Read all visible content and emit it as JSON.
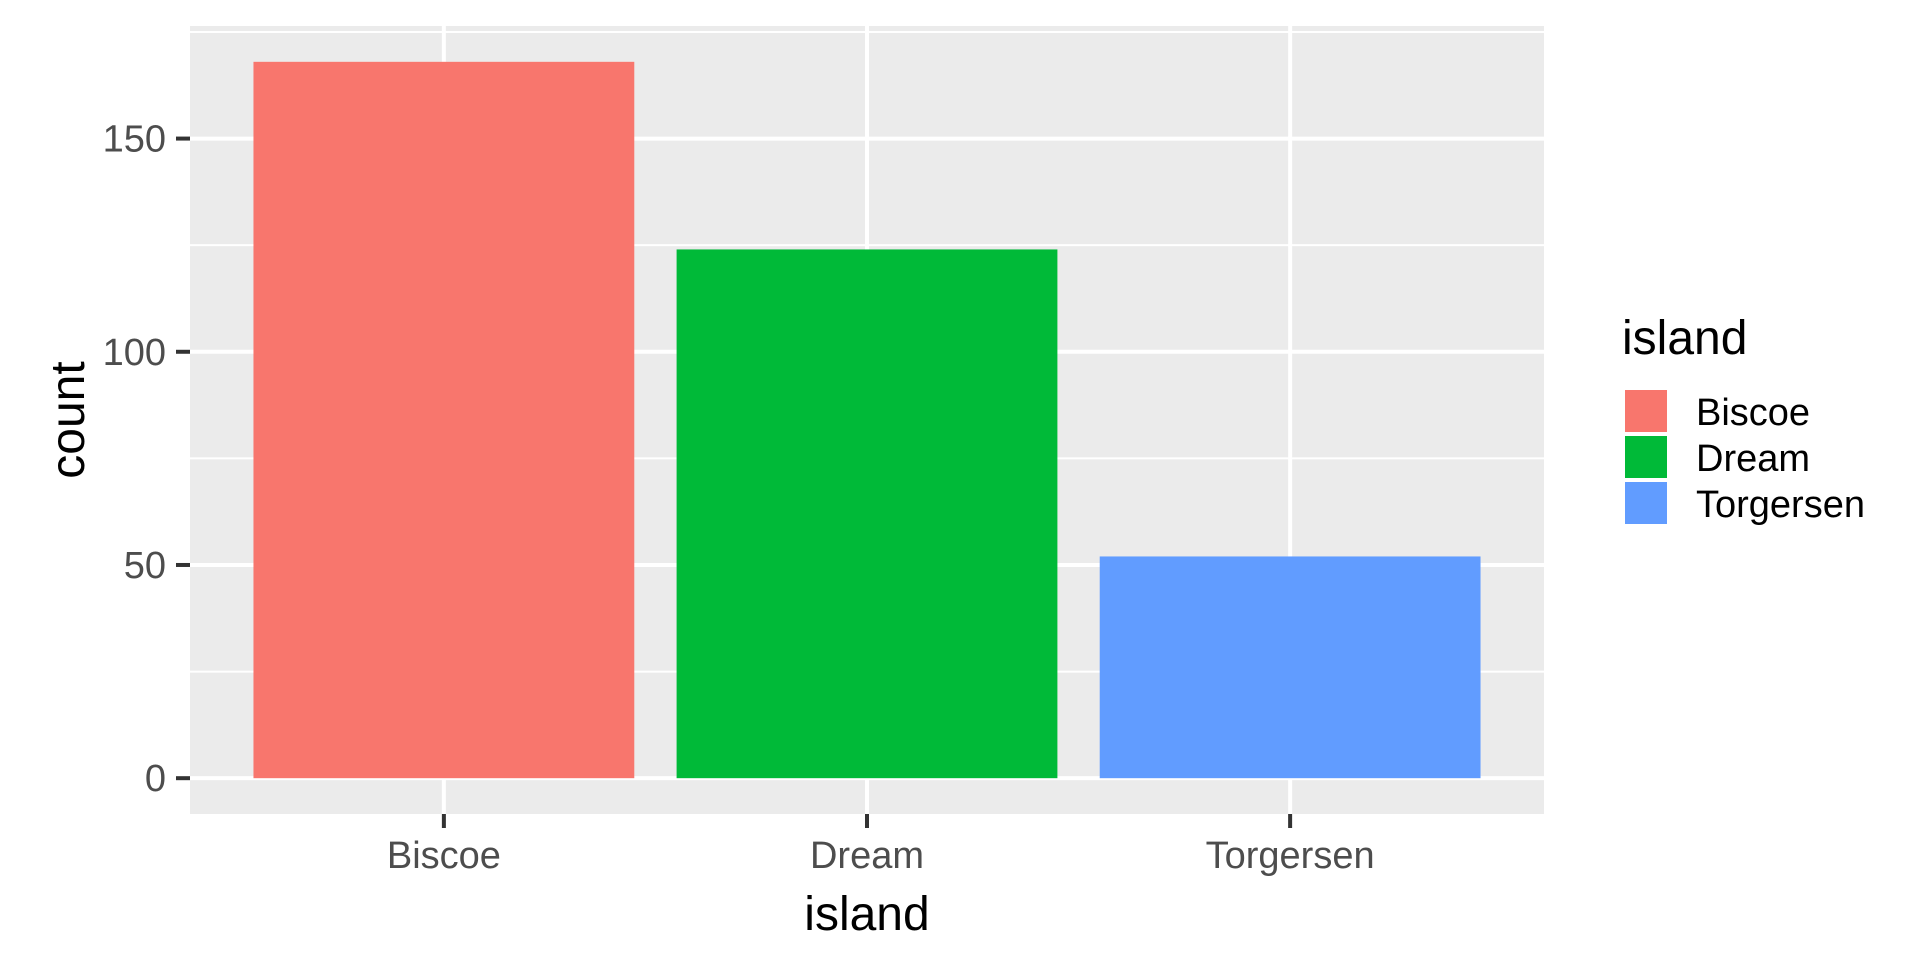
{
  "chart_data": {
    "type": "bar",
    "categories": [
      "Biscoe",
      "Dream",
      "Torgersen"
    ],
    "values": [
      168,
      124,
      52
    ],
    "colors": [
      "#F8766D",
      "#00BA38",
      "#619CFF"
    ],
    "xlabel": "island",
    "ylabel": "count",
    "ylim": [
      -8.4,
      176.4
    ],
    "yticks": [
      0,
      50,
      100,
      150
    ],
    "ytick_labels": [
      "0",
      "50",
      "100",
      "150"
    ],
    "grid": true,
    "panel_background": "#EBEBEB",
    "grid_color": "#FFFFFF",
    "legend": {
      "title": "island",
      "position": "right",
      "items": [
        {
          "label": "Biscoe",
          "color": "#F8766D"
        },
        {
          "label": "Dream",
          "color": "#00BA38"
        },
        {
          "label": "Torgersen",
          "color": "#619CFF"
        }
      ]
    }
  }
}
